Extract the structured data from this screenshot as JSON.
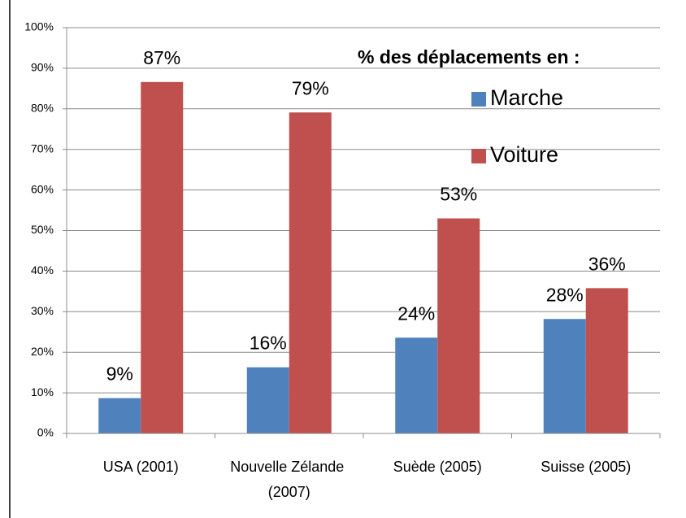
{
  "chart_data": {
    "type": "bar",
    "legend_title": "% des déplacements en :",
    "categories": [
      "USA (2001)",
      "Nouvelle Zélande (2007)",
      "Suède (2005)",
      "Suisse (2005)"
    ],
    "series": [
      {
        "name": "Marche",
        "color": "#4f81bd",
        "values": [
          8.7,
          16.3,
          23.6,
          28.2
        ],
        "value_labels": [
          "9%",
          "16%",
          "24%",
          "28%"
        ]
      },
      {
        "name": "Voiture",
        "color": "#c0504d",
        "values": [
          86.6,
          79.1,
          53,
          35.8
        ],
        "value_labels": [
          "87%",
          "79%",
          "53%",
          "36%"
        ]
      }
    ],
    "ylim": [
      0,
      100
    ],
    "yticks": [
      {
        "value": 0,
        "label": "0%"
      },
      {
        "value": 10,
        "label": "10%"
      },
      {
        "value": 20,
        "label": "20%"
      },
      {
        "value": 30,
        "label": "30%"
      },
      {
        "value": 40,
        "label": "40%"
      },
      {
        "value": 50,
        "label": "50%"
      },
      {
        "value": 60,
        "label": "60%"
      },
      {
        "value": 70,
        "label": "70%"
      },
      {
        "value": 80,
        "label": "80%"
      },
      {
        "value": 90,
        "label": "90%"
      },
      {
        "value": 100,
        "label": "100%"
      }
    ],
    "grid": true,
    "legend": "upper right"
  }
}
